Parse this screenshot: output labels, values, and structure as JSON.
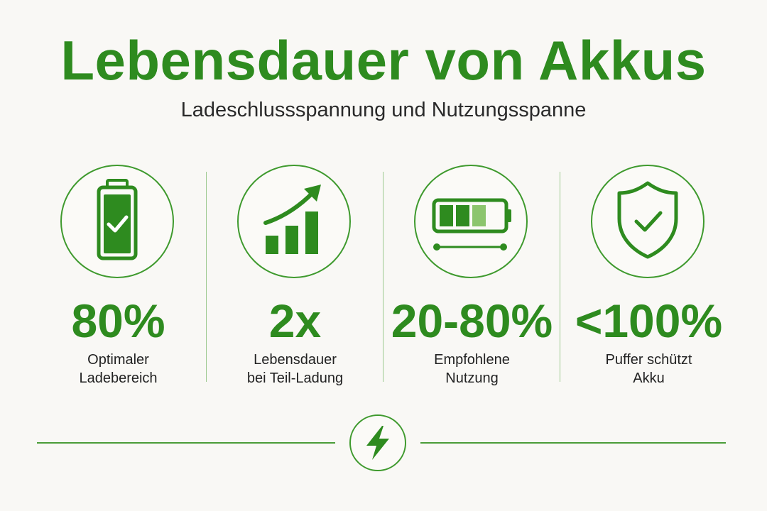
{
  "header": {
    "title": "Lebensdauer von Akkus",
    "subtitle": "Ladeschlussspannung und Nutzungsspanne"
  },
  "colors": {
    "accent": "#2e8b1f",
    "accent_light": "#8cc56e",
    "text": "#222222",
    "background": "#f9f8f5"
  },
  "stats": [
    {
      "icon": "battery-check-icon",
      "value": "80%",
      "label_line1": "Optimaler",
      "label_line2": "Ladebereich"
    },
    {
      "icon": "growth-chart-icon",
      "value": "2x",
      "label_line1": "Lebensdauer",
      "label_line2": "bei Teil-Ladung"
    },
    {
      "icon": "battery-range-icon",
      "value": "20-80%",
      "label_line1": "Empfohlene",
      "label_line2": "Nutzung"
    },
    {
      "icon": "shield-check-icon",
      "value": "<100%",
      "label_line1": "Puffer schützt",
      "label_line2": "Akku"
    }
  ],
  "footer": {
    "icon": "lightning-bolt-icon"
  }
}
